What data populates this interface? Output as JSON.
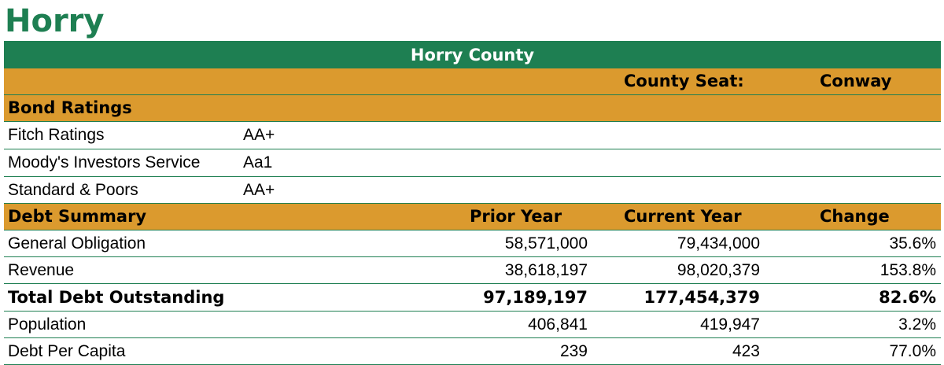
{
  "title": "Horry",
  "banner": "Horry County",
  "county_seat": {
    "label": "County Seat:",
    "value": "Conway"
  },
  "bond_ratings": {
    "header": "Bond Ratings",
    "rows": [
      {
        "label": "Fitch Ratings",
        "rating": "AA+"
      },
      {
        "label": "Moody's Investors Service",
        "rating": "Aa1"
      },
      {
        "label": "Standard & Poors",
        "rating": "AA+"
      }
    ]
  },
  "debt_summary": {
    "header": "Debt Summary",
    "columns": [
      "Prior Year",
      "Current Year",
      "Change"
    ],
    "rows": [
      {
        "label": "General Obligation",
        "prior": "58,571,000",
        "current": "79,434,000",
        "change": "35.6%"
      },
      {
        "label": "Revenue",
        "prior": "38,618,197",
        "current": "98,020,379",
        "change": "153.8%"
      },
      {
        "label": "Total Debt Outstanding",
        "prior": "97,189,197",
        "current": "177,454,379",
        "change": "82.6%"
      },
      {
        "label": "Population",
        "prior": "406,841",
        "current": "419,947",
        "change": "3.2%"
      },
      {
        "label": "Debt Per Capita",
        "prior": "239",
        "current": "423",
        "change": "77.0%"
      }
    ]
  },
  "colors": {
    "green": "#1e7f52",
    "gold": "#db9a2e",
    "white": "#ffffff"
  }
}
